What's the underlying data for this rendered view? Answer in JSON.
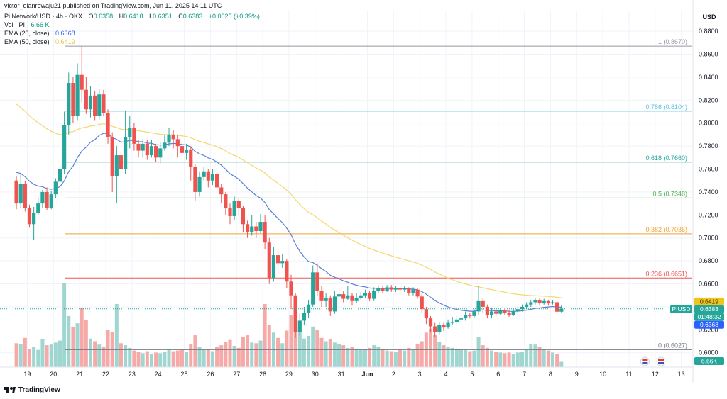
{
  "header": {
    "publisher": "victor_olanrewaju21 published on TradingView.com, Jun 11, 2025 14:11 UTC",
    "symbol": "Pi Network/USD · 4h · OKX",
    "ohlc": {
      "o_label": "O",
      "o": "0.6358",
      "h_label": "H",
      "h": "0.6418",
      "l_label": "L",
      "l": "0.6351",
      "c_label": "C",
      "c": "0.6383",
      "change": "+0.0025 (+0.39%)"
    },
    "vol": {
      "label": "Vol · PI",
      "value": "6.66 K"
    },
    "ema20": {
      "label": "EMA (20, close)",
      "value": "0.6368"
    },
    "ema50": {
      "label": "EMA (50, close)",
      "value": "0.6419"
    }
  },
  "footer": {
    "brand": "TradingView"
  },
  "colors": {
    "up": "#26a69a",
    "down": "#ef5350",
    "ema20": "#5b7fd6",
    "ema50": "#f5d76e",
    "vol_up": "#9fd6d0",
    "vol_down": "#f7a9a7"
  },
  "chart_data": {
    "type": "candlestick",
    "currency_label": "USD",
    "y_ticks": [
      "0.8800",
      "0.8600",
      "0.8400",
      "0.8200",
      "0.8000",
      "0.7800",
      "0.7600",
      "0.7400",
      "0.7200",
      "0.7000",
      "0.6800",
      "0.6600",
      "0.6400",
      "0.6200",
      "0.6000"
    ],
    "ylim": [
      0.5875,
      0.885
    ],
    "x_ticks": [
      {
        "label": "19",
        "t": 0.5
      },
      {
        "label": "20",
        "t": 1.5
      },
      {
        "label": "21",
        "t": 2.5
      },
      {
        "label": "22",
        "t": 3.5
      },
      {
        "label": "23",
        "t": 4.5
      },
      {
        "label": "24",
        "t": 5.5
      },
      {
        "label": "25",
        "t": 6.5
      },
      {
        "label": "26",
        "t": 7.5
      },
      {
        "label": "27",
        "t": 8.5
      },
      {
        "label": "28",
        "t": 9.5
      },
      {
        "label": "29",
        "t": 10.5
      },
      {
        "label": "30",
        "t": 11.5
      },
      {
        "label": "31",
        "t": 12.5
      },
      {
        "label": "Jun",
        "t": 13.5
      },
      {
        "label": "2",
        "t": 14.5
      },
      {
        "label": "3",
        "t": 15.5
      },
      {
        "label": "4",
        "t": 16.5
      },
      {
        "label": "5",
        "t": 17.5
      },
      {
        "label": "6",
        "t": 18.5
      },
      {
        "label": "7",
        "t": 19.5
      },
      {
        "label": "8",
        "t": 20.5
      },
      {
        "label": "9",
        "t": 21.5
      },
      {
        "label": "10",
        "t": 22.5
      },
      {
        "label": "11",
        "t": 23.5
      },
      {
        "label": "12",
        "t": 24.5
      },
      {
        "label": "13",
        "t": 25.5
      }
    ],
    "fib_levels": [
      {
        "label": "1 (0.8670)",
        "value": 0.867,
        "color": "#9598a1"
      },
      {
        "label": "0.786 (0.8104)",
        "value": 0.8104,
        "color": "#5bc0de"
      },
      {
        "label": "0.618 (0.7660)",
        "value": 0.766,
        "color": "#26a69a"
      },
      {
        "label": "0.5 (0.7348)",
        "value": 0.7348,
        "color": "#4caf50"
      },
      {
        "label": "0.382 (0.7036)",
        "value": 0.7036,
        "color": "#f0a030"
      },
      {
        "label": "0.236 (0.6651)",
        "value": 0.6651,
        "color": "#ef5350"
      },
      {
        "label": "0 (0.6027)",
        "value": 0.6027,
        "color": "#787b86"
      }
    ],
    "price_labels": [
      {
        "text": "0.6419",
        "bg": "#f0c419",
        "fg": "#131722"
      },
      {
        "text": "PIUSD",
        "bg": "#26a69a",
        "fg": "#ffffff"
      },
      {
        "text": "0.6383",
        "bg": "#26a69a",
        "fg": "#ffffff"
      },
      {
        "text": "01:48:32",
        "bg": "#26a69a",
        "fg": "#ffffff"
      },
      {
        "text": "0.6368",
        "bg": "#2962ff",
        "fg": "#ffffff"
      },
      {
        "text": "6.66K",
        "bg": "#26a69a",
        "fg": "#ffffff"
      }
    ],
    "last_price": 0.6383,
    "ema20_value": 0.6368,
    "ema50_value": 0.6419,
    "candles": [
      [
        0.75,
        0.73,
        0.754,
        0.725,
        36
      ],
      [
        0.73,
        0.747,
        0.756,
        0.726,
        35
      ],
      [
        0.747,
        0.726,
        0.75,
        0.723,
        44
      ],
      [
        0.726,
        0.712,
        0.729,
        0.709,
        27
      ],
      [
        0.712,
        0.722,
        0.727,
        0.698,
        30
      ],
      [
        0.722,
        0.73,
        0.735,
        0.72,
        26
      ],
      [
        0.73,
        0.74,
        0.742,
        0.726,
        42
      ],
      [
        0.74,
        0.726,
        0.744,
        0.724,
        33
      ],
      [
        0.726,
        0.738,
        0.741,
        0.725,
        34
      ],
      [
        0.738,
        0.749,
        0.752,
        0.735,
        37
      ],
      [
        0.749,
        0.76,
        0.768,
        0.747,
        40
      ],
      [
        0.76,
        0.798,
        0.81,
        0.756,
        126
      ],
      [
        0.798,
        0.835,
        0.844,
        0.79,
        77
      ],
      [
        0.835,
        0.806,
        0.84,
        0.8,
        61
      ],
      [
        0.806,
        0.842,
        0.852,
        0.802,
        66
      ],
      [
        0.842,
        0.829,
        0.867,
        0.818,
        89
      ],
      [
        0.829,
        0.812,
        0.84,
        0.808,
        71
      ],
      [
        0.812,
        0.824,
        0.832,
        0.805,
        43
      ],
      [
        0.824,
        0.806,
        0.828,
        0.802,
        39
      ],
      [
        0.806,
        0.825,
        0.83,
        0.803,
        34
      ],
      [
        0.825,
        0.809,
        0.829,
        0.806,
        31
      ],
      [
        0.809,
        0.788,
        0.812,
        0.782,
        56
      ],
      [
        0.788,
        0.754,
        0.792,
        0.74,
        53
      ],
      [
        0.754,
        0.772,
        0.78,
        0.73,
        95
      ],
      [
        0.772,
        0.76,
        0.776,
        0.754,
        36
      ],
      [
        0.76,
        0.788,
        0.811,
        0.756,
        33
      ],
      [
        0.788,
        0.796,
        0.806,
        0.778,
        29
      ],
      [
        0.796,
        0.782,
        0.8,
        0.776,
        25
      ],
      [
        0.782,
        0.776,
        0.785,
        0.77,
        23
      ],
      [
        0.776,
        0.782,
        0.786,
        0.77,
        21
      ],
      [
        0.782,
        0.772,
        0.785,
        0.768,
        24
      ],
      [
        0.772,
        0.78,
        0.785,
        0.77,
        20
      ],
      [
        0.78,
        0.77,
        0.782,
        0.766,
        22
      ],
      [
        0.77,
        0.778,
        0.783,
        0.765,
        21
      ],
      [
        0.778,
        0.783,
        0.79,
        0.776,
        23
      ],
      [
        0.783,
        0.79,
        0.796,
        0.78,
        27
      ],
      [
        0.79,
        0.786,
        0.794,
        0.778,
        24
      ],
      [
        0.786,
        0.78,
        0.79,
        0.77,
        25
      ],
      [
        0.78,
        0.774,
        0.784,
        0.768,
        26
      ],
      [
        0.774,
        0.777,
        0.782,
        0.768,
        23
      ],
      [
        0.777,
        0.762,
        0.78,
        0.75,
        35
      ],
      [
        0.762,
        0.74,
        0.764,
        0.732,
        48
      ],
      [
        0.74,
        0.753,
        0.758,
        0.736,
        30
      ],
      [
        0.753,
        0.758,
        0.762,
        0.75,
        26
      ],
      [
        0.758,
        0.75,
        0.76,
        0.744,
        27
      ],
      [
        0.75,
        0.756,
        0.76,
        0.746,
        24
      ],
      [
        0.756,
        0.744,
        0.758,
        0.74,
        31
      ],
      [
        0.744,
        0.738,
        0.747,
        0.73,
        33
      ],
      [
        0.738,
        0.726,
        0.74,
        0.72,
        38
      ],
      [
        0.726,
        0.719,
        0.73,
        0.712,
        41
      ],
      [
        0.719,
        0.732,
        0.736,
        0.716,
        32
      ],
      [
        0.732,
        0.726,
        0.735,
        0.72,
        29
      ],
      [
        0.726,
        0.712,
        0.728,
        0.705,
        45
      ],
      [
        0.712,
        0.705,
        0.715,
        0.7,
        48
      ],
      [
        0.705,
        0.71,
        0.72,
        0.702,
        37
      ],
      [
        0.71,
        0.706,
        0.714,
        0.7,
        36
      ],
      [
        0.706,
        0.714,
        0.721,
        0.704,
        40
      ],
      [
        0.714,
        0.696,
        0.72,
        0.69,
        95
      ],
      [
        0.696,
        0.665,
        0.7,
        0.66,
        63
      ],
      [
        0.665,
        0.685,
        0.692,
        0.662,
        52
      ],
      [
        0.685,
        0.678,
        0.69,
        0.67,
        44
      ],
      [
        0.678,
        0.68,
        0.686,
        0.674,
        36
      ],
      [
        0.68,
        0.662,
        0.682,
        0.656,
        55
      ],
      [
        0.662,
        0.65,
        0.668,
        0.638,
        78
      ],
      [
        0.65,
        0.618,
        0.652,
        0.613,
        93
      ],
      [
        0.618,
        0.628,
        0.635,
        0.615,
        58
      ],
      [
        0.628,
        0.635,
        0.64,
        0.624,
        43
      ],
      [
        0.635,
        0.642,
        0.646,
        0.63,
        47
      ],
      [
        0.642,
        0.67,
        0.676,
        0.64,
        61
      ],
      [
        0.67,
        0.654,
        0.678,
        0.65,
        56
      ],
      [
        0.654,
        0.645,
        0.658,
        0.64,
        44
      ],
      [
        0.645,
        0.648,
        0.652,
        0.64,
        39
      ],
      [
        0.648,
        0.636,
        0.65,
        0.632,
        42
      ],
      [
        0.636,
        0.649,
        0.654,
        0.634,
        37
      ],
      [
        0.649,
        0.651,
        0.656,
        0.646,
        35
      ],
      [
        0.651,
        0.647,
        0.654,
        0.644,
        33
      ],
      [
        0.647,
        0.65,
        0.658,
        0.646,
        29
      ],
      [
        0.65,
        0.645,
        0.652,
        0.641,
        30
      ],
      [
        0.645,
        0.648,
        0.652,
        0.643,
        28
      ],
      [
        0.648,
        0.65,
        0.653,
        0.646,
        26
      ],
      [
        0.65,
        0.652,
        0.655,
        0.648,
        27
      ],
      [
        0.652,
        0.647,
        0.654,
        0.645,
        29
      ],
      [
        0.647,
        0.654,
        0.657,
        0.645,
        33
      ],
      [
        0.654,
        0.656,
        0.659,
        0.652,
        31
      ],
      [
        0.656,
        0.654,
        0.658,
        0.652,
        27
      ],
      [
        0.654,
        0.657,
        0.659,
        0.653,
        25
      ],
      [
        0.657,
        0.655,
        0.659,
        0.653,
        24
      ],
      [
        0.655,
        0.656,
        0.658,
        0.653,
        23
      ],
      [
        0.656,
        0.655,
        0.658,
        0.652,
        26
      ],
      [
        0.655,
        0.656,
        0.658,
        0.653,
        25
      ],
      [
        0.656,
        0.652,
        0.657,
        0.65,
        29
      ],
      [
        0.652,
        0.655,
        0.657,
        0.65,
        27
      ],
      [
        0.655,
        0.649,
        0.656,
        0.647,
        35
      ],
      [
        0.649,
        0.638,
        0.652,
        0.635,
        39
      ],
      [
        0.638,
        0.63,
        0.64,
        0.625,
        52
      ],
      [
        0.63,
        0.623,
        0.632,
        0.618,
        58
      ],
      [
        0.623,
        0.618,
        0.626,
        0.614,
        48
      ],
      [
        0.618,
        0.624,
        0.627,
        0.616,
        38
      ],
      [
        0.624,
        0.622,
        0.626,
        0.619,
        33
      ],
      [
        0.622,
        0.626,
        0.629,
        0.621,
        30
      ],
      [
        0.626,
        0.627,
        0.631,
        0.624,
        29
      ],
      [
        0.627,
        0.629,
        0.632,
        0.625,
        28
      ],
      [
        0.629,
        0.63,
        0.633,
        0.627,
        27
      ],
      [
        0.63,
        0.633,
        0.636,
        0.628,
        26
      ],
      [
        0.633,
        0.632,
        0.635,
        0.63,
        24
      ],
      [
        0.632,
        0.636,
        0.638,
        0.63,
        25
      ],
      [
        0.636,
        0.645,
        0.658,
        0.633,
        45
      ],
      [
        0.645,
        0.64,
        0.648,
        0.635,
        33
      ],
      [
        0.64,
        0.633,
        0.642,
        0.63,
        29
      ],
      [
        0.633,
        0.636,
        0.639,
        0.63,
        25
      ],
      [
        0.636,
        0.634,
        0.638,
        0.632,
        23
      ],
      [
        0.634,
        0.637,
        0.639,
        0.633,
        22
      ],
      [
        0.637,
        0.635,
        0.639,
        0.633,
        21
      ],
      [
        0.635,
        0.633,
        0.637,
        0.631,
        22
      ],
      [
        0.633,
        0.636,
        0.638,
        0.632,
        20
      ],
      [
        0.636,
        0.638,
        0.64,
        0.634,
        22
      ],
      [
        0.638,
        0.64,
        0.642,
        0.636,
        23
      ],
      [
        0.64,
        0.642,
        0.644,
        0.638,
        26
      ],
      [
        0.642,
        0.644,
        0.646,
        0.64,
        35
      ],
      [
        0.644,
        0.646,
        0.648,
        0.642,
        34
      ],
      [
        0.646,
        0.643,
        0.648,
        0.641,
        30
      ],
      [
        0.643,
        0.645,
        0.647,
        0.642,
        27
      ],
      [
        0.645,
        0.643,
        0.646,
        0.641,
        25
      ],
      [
        0.643,
        0.644,
        0.646,
        0.642,
        22
      ],
      [
        0.644,
        0.6358,
        0.645,
        0.634,
        20
      ],
      [
        0.6358,
        0.6383,
        0.6418,
        0.6351,
        8
      ]
    ]
  }
}
